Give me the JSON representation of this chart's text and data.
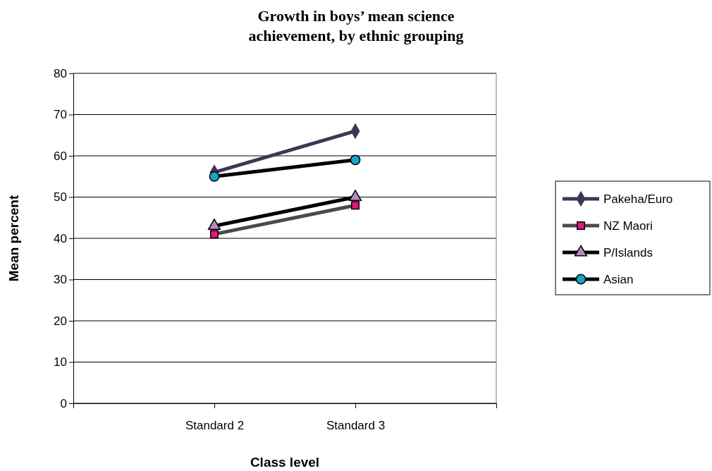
{
  "chart_data": {
    "type": "line",
    "title": "Growth in boys’ mean science achievement, by ethnic grouping",
    "xlabel": "Class level",
    "ylabel": "Mean percent",
    "categories": [
      null,
      "Standard 2",
      "Standard 3",
      null
    ],
    "ylim": [
      0,
      80
    ],
    "yticks": [
      0,
      10,
      20,
      30,
      40,
      50,
      60,
      70,
      80
    ],
    "grid": "y",
    "legend": "right",
    "series": [
      {
        "name": "Pakeha/Euro",
        "color": "#3f3656",
        "marker": "diamond",
        "colors": [
          null,
          "#3f3656",
          "#3f3656",
          null
        ],
        "values": [
          null,
          56,
          66,
          null
        ]
      },
      {
        "name": "NZ Maori",
        "color": "#4a4a4a",
        "marker": "square",
        "colors": [
          null,
          "#e8157f",
          "#e8157f",
          null
        ],
        "values": [
          null,
          41,
          48,
          null
        ]
      },
      {
        "name": "P/Islands",
        "color": "#000000",
        "marker": "triangle",
        "colors": [
          null,
          "#b38cc6",
          "#b38cc6",
          null
        ],
        "values": [
          null,
          43,
          50,
          null
        ]
      },
      {
        "name": "Asian",
        "color": "#000000",
        "marker": "circle",
        "colors": [
          null,
          "#1aa3c6",
          "#1aa3c6",
          null
        ],
        "values": [
          null,
          55,
          59,
          null
        ]
      }
    ]
  }
}
